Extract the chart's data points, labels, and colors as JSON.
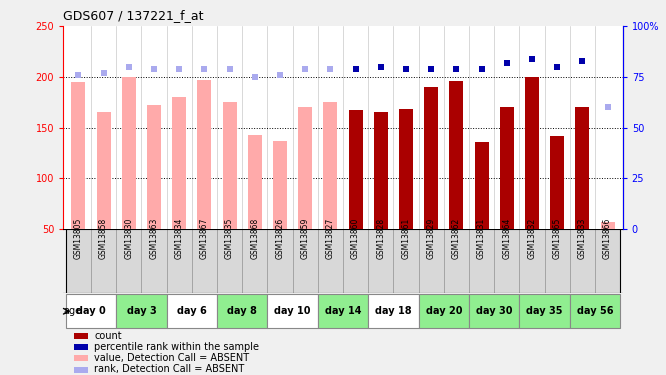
{
  "title": "GDS607 / 137221_f_at",
  "samples": [
    "GSM13805",
    "GSM13858",
    "GSM13830",
    "GSM13863",
    "GSM13834",
    "GSM13867",
    "GSM13835",
    "GSM13868",
    "GSM13826",
    "GSM13859",
    "GSM13827",
    "GSM13860",
    "GSM13828",
    "GSM13861",
    "GSM13829",
    "GSM13862",
    "GSM13831",
    "GSM13864",
    "GSM13832",
    "GSM13865",
    "GSM13833",
    "GSM13866"
  ],
  "age_groups": [
    {
      "label": "day 0",
      "start": 0,
      "end": 2,
      "bg": "#FFFFFF"
    },
    {
      "label": "day 3",
      "start": 2,
      "end": 4,
      "bg": "#90EE90"
    },
    {
      "label": "day 6",
      "start": 4,
      "end": 6,
      "bg": "#FFFFFF"
    },
    {
      "label": "day 8",
      "start": 6,
      "end": 8,
      "bg": "#90EE90"
    },
    {
      "label": "day 10",
      "start": 8,
      "end": 10,
      "bg": "#FFFFFF"
    },
    {
      "label": "day 14",
      "start": 10,
      "end": 12,
      "bg": "#90EE90"
    },
    {
      "label": "day 18",
      "start": 12,
      "end": 14,
      "bg": "#FFFFFF"
    },
    {
      "label": "day 20",
      "start": 14,
      "end": 16,
      "bg": "#90EE90"
    },
    {
      "label": "day 30",
      "start": 16,
      "end": 18,
      "bg": "#90EE90"
    },
    {
      "label": "day 35",
      "start": 18,
      "end": 20,
      "bg": "#90EE90"
    },
    {
      "label": "day 56",
      "start": 20,
      "end": 22,
      "bg": "#90EE90"
    }
  ],
  "bar_values": [
    195,
    165,
    200,
    172,
    180,
    197,
    175,
    143,
    137,
    170,
    175,
    167,
    165,
    168,
    190,
    196,
    136,
    170,
    200,
    142,
    170,
    57
  ],
  "bar_absent_flags": [
    1,
    1,
    1,
    1,
    1,
    1,
    1,
    1,
    1,
    1,
    1,
    0,
    0,
    0,
    0,
    0,
    0,
    0,
    0,
    0,
    0,
    1
  ],
  "rank_values": [
    76,
    77,
    80,
    79,
    79,
    79,
    79,
    75,
    76,
    79,
    79,
    79,
    80,
    79,
    79,
    79,
    79,
    82,
    84,
    80,
    83,
    60
  ],
  "rank_absent_flags": [
    1,
    1,
    1,
    1,
    1,
    1,
    1,
    1,
    1,
    1,
    1,
    0,
    0,
    0,
    0,
    0,
    0,
    0,
    0,
    0,
    0,
    1
  ],
  "ylim": [
    50,
    250
  ],
  "y2lim": [
    0,
    100
  ],
  "yticks": [
    50,
    100,
    150,
    200,
    250
  ],
  "ytick_labels": [
    "50",
    "100",
    "150",
    "200",
    "250"
  ],
  "y2ticks": [
    0,
    25,
    50,
    75,
    100
  ],
  "y2tick_labels": [
    "0",
    "25",
    "50",
    "75",
    "100%"
  ],
  "hlines": [
    100,
    150,
    200
  ],
  "bar_absent_color": "#FFAAAA",
  "bar_present_color": "#AA0000",
  "rank_absent_color": "#AAAAEE",
  "rank_present_color": "#0000AA",
  "bg_color": "#F0F0F0",
  "plot_bg_color": "#FFFFFF",
  "sample_header_bg": "#D8D8D8",
  "legend_items": [
    {
      "color": "#AA0000",
      "label": "count"
    },
    {
      "color": "#0000AA",
      "label": "percentile rank within the sample"
    },
    {
      "color": "#FFAAAA",
      "label": "value, Detection Call = ABSENT"
    },
    {
      "color": "#AAAAEE",
      "label": "rank, Detection Call = ABSENT"
    }
  ]
}
